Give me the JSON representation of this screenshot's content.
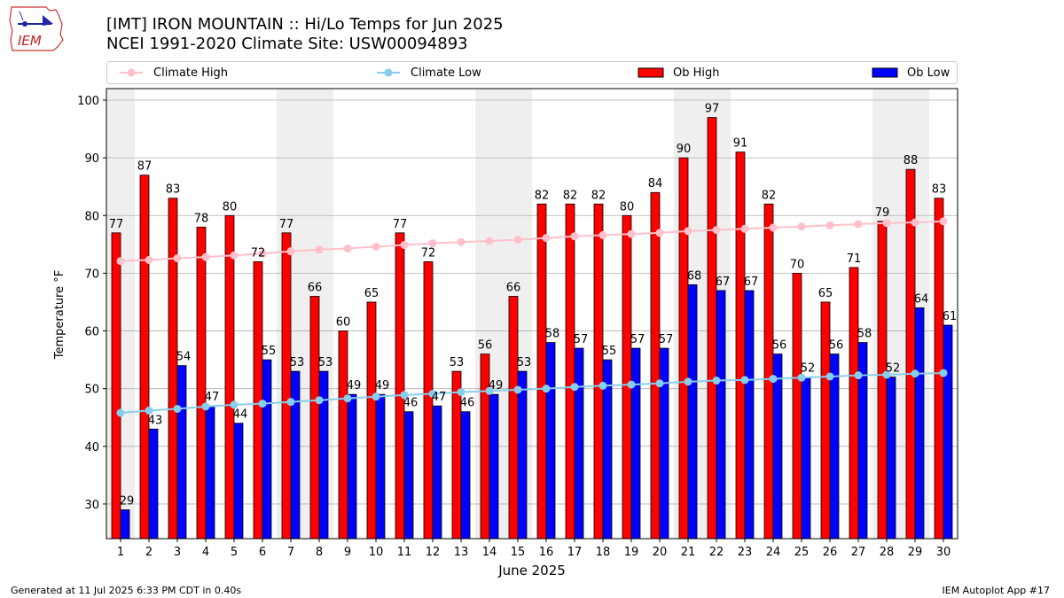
{
  "header": {
    "title_line1": "[IMT] IRON MOUNTAIN :: Hi/Lo Temps for Jun 2025",
    "title_line2": "NCEI 1991-2020 Climate Site: USW00094893",
    "logo_text": "IEM"
  },
  "legend": {
    "placement": "top",
    "items": [
      {
        "label": "Climate High",
        "kind": "line",
        "color": "#ffc0cb"
      },
      {
        "label": "Climate Low",
        "kind": "line",
        "color": "#87ceeb"
      },
      {
        "label": "Ob High",
        "kind": "bar",
        "color": "#ff0000"
      },
      {
        "label": "Ob Low",
        "kind": "bar",
        "color": "#0000ff"
      }
    ]
  },
  "chart_data": {
    "type": "bar",
    "xlabel": "June 2025",
    "ylabel": "Temperature °F",
    "ylim": [
      24,
      102
    ],
    "yticks": [
      30,
      40,
      50,
      60,
      70,
      80,
      90,
      100
    ],
    "grid": "horizontal",
    "weekend_shading": [
      [
        1,
        1
      ],
      [
        7,
        8
      ],
      [
        14,
        15
      ],
      [
        21,
        22
      ],
      [
        28,
        29
      ]
    ],
    "categories": [
      "1",
      "2",
      "3",
      "4",
      "5",
      "6",
      "7",
      "8",
      "9",
      "10",
      "11",
      "12",
      "13",
      "14",
      "15",
      "16",
      "17",
      "18",
      "19",
      "20",
      "21",
      "22",
      "23",
      "24",
      "25",
      "26",
      "27",
      "28",
      "29",
      "30"
    ],
    "series": [
      {
        "name": "Ob High",
        "kind": "bar",
        "color": "#ff0000",
        "values": [
          77,
          87,
          83,
          78,
          80,
          72,
          77,
          66,
          60,
          65,
          77,
          72,
          53,
          56,
          66,
          82,
          82,
          82,
          80,
          84,
          90,
          97,
          91,
          82,
          70,
          65,
          71,
          79,
          88,
          83
        ]
      },
      {
        "name": "Ob Low",
        "kind": "bar",
        "color": "#0000ff",
        "values": [
          29,
          43,
          54,
          47,
          44,
          55,
          53,
          53,
          49,
          49,
          46,
          47,
          46,
          49,
          53,
          58,
          57,
          55,
          57,
          57,
          68,
          67,
          67,
          56,
          52,
          56,
          58,
          52,
          64,
          61
        ]
      },
      {
        "name": "Climate High",
        "kind": "line",
        "color": "#ffc0cb",
        "values": [
          72.1,
          72.3,
          72.6,
          72.8,
          73.1,
          73.4,
          73.8,
          74.1,
          74.3,
          74.6,
          74.9,
          75.2,
          75.4,
          75.6,
          75.8,
          76.1,
          76.4,
          76.6,
          76.8,
          77.0,
          77.3,
          77.5,
          77.7,
          77.9,
          78.1,
          78.3,
          78.5,
          78.7,
          78.8,
          79.0
        ]
      },
      {
        "name": "Climate Low",
        "kind": "line",
        "color": "#87ceeb",
        "values": [
          45.8,
          46.2,
          46.5,
          46.9,
          47.2,
          47.4,
          47.7,
          48.0,
          48.3,
          48.6,
          48.9,
          49.1,
          49.4,
          49.6,
          49.8,
          50.0,
          50.3,
          50.5,
          50.7,
          50.9,
          51.2,
          51.4,
          51.5,
          51.7,
          51.9,
          52.1,
          52.3,
          52.4,
          52.6,
          52.7
        ]
      }
    ]
  },
  "footer": {
    "left": "Generated at 11 Jul 2025 6:33 PM CDT in 0.40s",
    "right": "IEM Autoplot App #17"
  }
}
